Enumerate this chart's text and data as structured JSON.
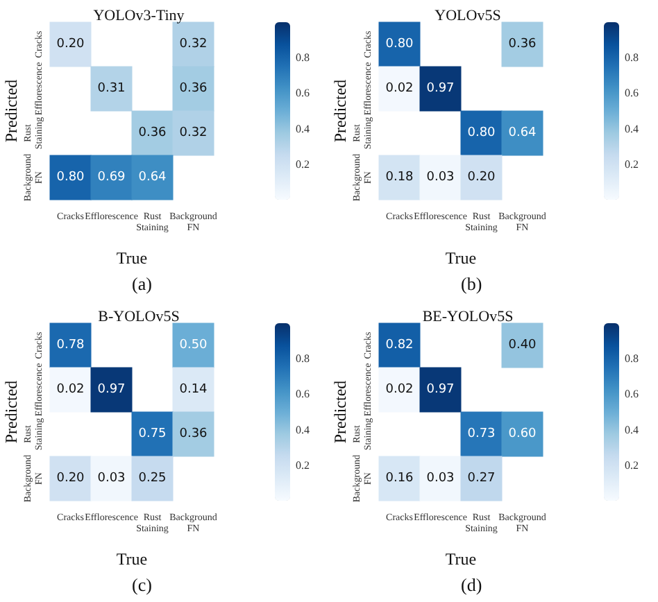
{
  "chart_data": [
    {
      "type": "heatmap",
      "title": "YOLOv3-Tiny",
      "xlabel": "True",
      "ylabel": "Predicted",
      "annotations": [
        "(a)"
      ],
      "categories": [
        "Cracks",
        "Efflorescence",
        "Rust Staining",
        "Background FN"
      ],
      "y_categories": [
        "Cracks",
        "Efflorescence",
        "Rust Staining",
        "Background FN"
      ],
      "cells": [
        [
          0.2,
          null,
          null,
          0.32
        ],
        [
          null,
          0.31,
          null,
          0.36
        ],
        [
          null,
          null,
          0.36,
          0.32
        ],
        [
          0.8,
          0.69,
          0.64,
          null
        ]
      ],
      "cell_labels": [
        [
          "0.20",
          null,
          null,
          "0.32"
        ],
        [
          null,
          "0.31",
          null,
          "0.36"
        ],
        [
          null,
          null,
          "0.36",
          "0.32"
        ],
        [
          "0.80",
          "0.69",
          "0.64",
          null
        ]
      ],
      "clim": [
        0,
        1
      ],
      "cticks": [
        0.2,
        0.4,
        0.6,
        0.8
      ]
    },
    {
      "type": "heatmap",
      "title": "YOLOv5S",
      "xlabel": "True",
      "ylabel": "Predicted",
      "annotations": [
        "(b)"
      ],
      "categories": [
        "Cracks",
        "Efflorescence",
        "Rust Staining",
        "Background FN"
      ],
      "y_categories": [
        "Cracks",
        "Efflorescence",
        "Rust Staining",
        "Background FN"
      ],
      "cells": [
        [
          0.8,
          null,
          null,
          0.36
        ],
        [
          0.02,
          0.97,
          null,
          null
        ],
        [
          null,
          null,
          0.8,
          0.64
        ],
        [
          0.18,
          0.03,
          0.2,
          null
        ]
      ],
      "cell_labels": [
        [
          "0.80",
          null,
          null,
          "0.36"
        ],
        [
          "0.02",
          "0.97",
          null,
          null
        ],
        [
          null,
          null,
          "0.80",
          "0.64"
        ],
        [
          "0.18",
          "0.03",
          "0.20",
          null
        ]
      ],
      "clim": [
        0,
        1
      ],
      "cticks": [
        0.2,
        0.4,
        0.6,
        0.8
      ]
    },
    {
      "type": "heatmap",
      "title": "B-YOLOv5S",
      "xlabel": "True",
      "ylabel": "Predicted",
      "annotations": [
        "(c)"
      ],
      "categories": [
        "Cracks",
        "Efflorescence",
        "Rust Staining",
        "Background FN"
      ],
      "y_categories": [
        "Cracks",
        "Efflorescence",
        "Rust Staining",
        "Background FN"
      ],
      "cells": [
        [
          0.78,
          null,
          null,
          0.5
        ],
        [
          0.02,
          0.97,
          null,
          0.14
        ],
        [
          null,
          null,
          0.75,
          0.36
        ],
        [
          0.2,
          0.03,
          0.25,
          null
        ]
      ],
      "cell_labels": [
        [
          "0.78",
          null,
          null,
          "0.50"
        ],
        [
          "0.02",
          "0.97",
          null,
          "0.14"
        ],
        [
          null,
          null,
          "0.75",
          "0.36"
        ],
        [
          "0.20",
          "0.03",
          "0.25",
          null
        ]
      ],
      "clim": [
        0,
        1
      ],
      "cticks": [
        0.2,
        0.4,
        0.6,
        0.8
      ]
    },
    {
      "type": "heatmap",
      "title": "BE-YOLOv5S",
      "xlabel": "True",
      "ylabel": "Predicted",
      "annotations": [
        "(d)"
      ],
      "categories": [
        "Cracks",
        "Efflorescence",
        "Rust Staining",
        "Background FN"
      ],
      "y_categories": [
        "Cracks",
        "Efflorescence",
        "Rust Staining",
        "Background FN"
      ],
      "cells": [
        [
          0.82,
          null,
          null,
          0.4
        ],
        [
          0.02,
          0.97,
          null,
          null
        ],
        [
          null,
          null,
          0.73,
          0.6
        ],
        [
          0.16,
          0.03,
          0.27,
          null
        ]
      ],
      "cell_labels": [
        [
          "0.82",
          null,
          null,
          "0.40"
        ],
        [
          "0.02",
          "0.97",
          null,
          null
        ],
        [
          null,
          null,
          "0.73",
          "0.60"
        ],
        [
          "0.16",
          "0.03",
          "0.27",
          null
        ]
      ],
      "clim": [
        0,
        1
      ],
      "cticks": [
        0.2,
        0.4,
        0.6,
        0.8
      ]
    }
  ]
}
